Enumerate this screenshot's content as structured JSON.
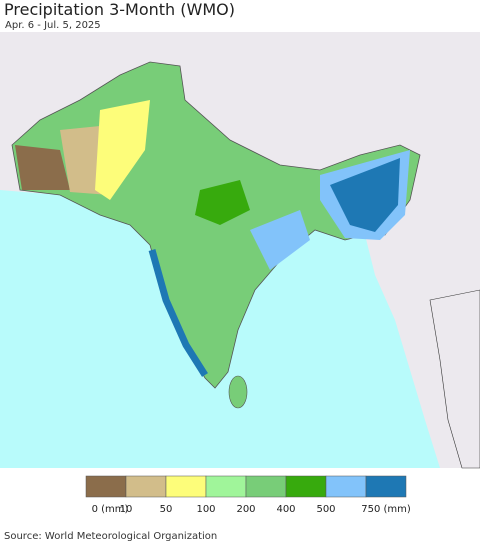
{
  "header": {
    "title": "Precipitation 3-Month (WMO)",
    "subtitle": "Apr. 6 - Jul. 5, 2025"
  },
  "legend": {
    "items": [
      {
        "label": "0 (mm)",
        "color": "#8b6d4b"
      },
      {
        "label": "10",
        "color": "#d2bd8a"
      },
      {
        "label": "50",
        "color": "#fdfd7a"
      },
      {
        "label": "100",
        "color": "#a0f59a"
      },
      {
        "label": "200",
        "color": "#78cd78"
      },
      {
        "label": "400",
        "color": "#37aa0d"
      },
      {
        "label": "500",
        "color": "#82c3fa"
      },
      {
        "label": "750 (mm)",
        "color": "#1e78b4"
      }
    ]
  },
  "footer": {
    "source": "Source: World Meteorological Organization"
  }
}
